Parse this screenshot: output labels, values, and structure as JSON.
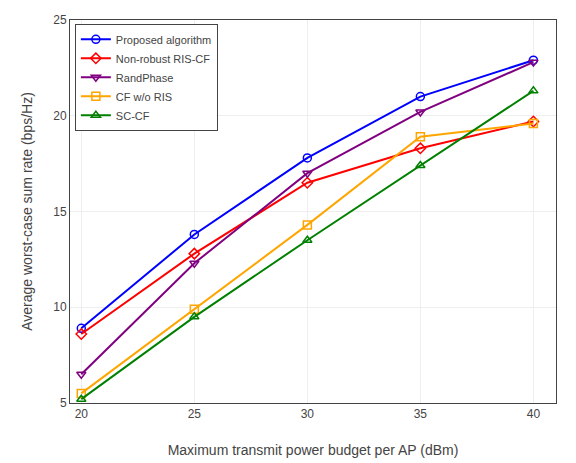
{
  "chart_data": {
    "type": "line",
    "xlabel": "Maximum transmit power budget per AP (dBm)",
    "ylabel": "Average worst-case sum rate (bps/Hz)",
    "x": [
      20,
      25,
      30,
      35,
      40
    ],
    "series": [
      {
        "name": "Proposed algorithm",
        "color": "#0000ff",
        "marker": "circle",
        "values": [
          8.9,
          13.8,
          17.8,
          21.0,
          22.9
        ]
      },
      {
        "name": "Non-robust RIS-CF",
        "color": "#ff0000",
        "marker": "diamond",
        "values": [
          8.6,
          12.8,
          16.5,
          18.3,
          19.7
        ]
      },
      {
        "name": "RandPhase",
        "color": "#800080",
        "marker": "triangle-down",
        "values": [
          6.5,
          12.3,
          17.0,
          20.2,
          22.8
        ]
      },
      {
        "name": "CF w/o RIS",
        "color": "#ffa500",
        "marker": "square",
        "values": [
          5.5,
          9.9,
          14.3,
          18.9,
          19.6
        ]
      },
      {
        "name": "SC-CF",
        "color": "#008000",
        "marker": "triangle-up",
        "values": [
          5.2,
          9.5,
          13.5,
          17.4,
          21.3
        ]
      }
    ],
    "xlim": [
      19.5,
      41
    ],
    "ylim": [
      5,
      25
    ],
    "xticks": [
      20,
      25,
      30,
      35,
      40
    ],
    "yticks": [
      5,
      10,
      15,
      20,
      25
    ],
    "grid": true,
    "legend": "upper left"
  }
}
